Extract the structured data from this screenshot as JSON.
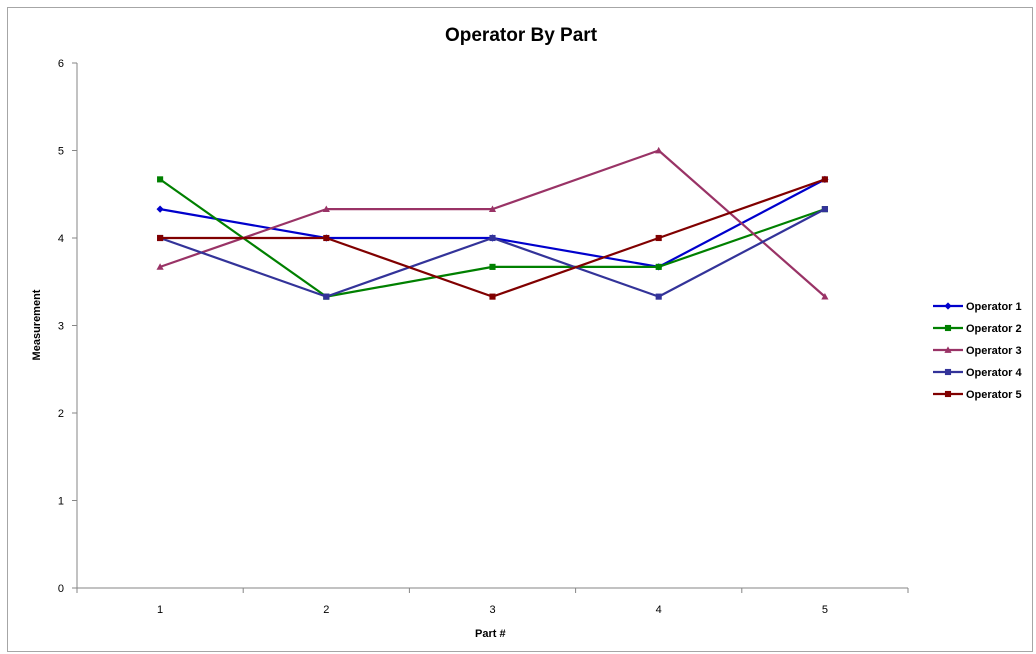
{
  "chart_data": {
    "type": "line",
    "title": "Operator By Part",
    "xlabel": "Part #",
    "ylabel": "Measurement",
    "categories": [
      "1",
      "2",
      "3",
      "4",
      "5"
    ],
    "yticks": [
      "0",
      "1",
      "2",
      "3",
      "4",
      "5",
      "6"
    ],
    "ylim": [
      0,
      6
    ],
    "grid": false,
    "legend_position": "right",
    "series": [
      {
        "name": "Operator 1",
        "color": "#0000CC",
        "marker": "diamond",
        "values": [
          4.33,
          4.0,
          4.0,
          3.67,
          4.67
        ]
      },
      {
        "name": "Operator 2",
        "color": "#008000",
        "marker": "square",
        "values": [
          4.67,
          3.33,
          3.67,
          3.67,
          4.33
        ]
      },
      {
        "name": "Operator 3",
        "color": "#993366",
        "marker": "triangle",
        "values": [
          3.67,
          4.33,
          4.33,
          5.0,
          3.33
        ]
      },
      {
        "name": "Operator 4",
        "color": "#333399",
        "marker": "square",
        "values": [
          4.0,
          3.33,
          4.0,
          3.33,
          4.33
        ]
      },
      {
        "name": "Operator 5",
        "color": "#800000",
        "marker": "square",
        "values": [
          4.0,
          4.0,
          3.33,
          4.0,
          4.67
        ]
      }
    ]
  }
}
